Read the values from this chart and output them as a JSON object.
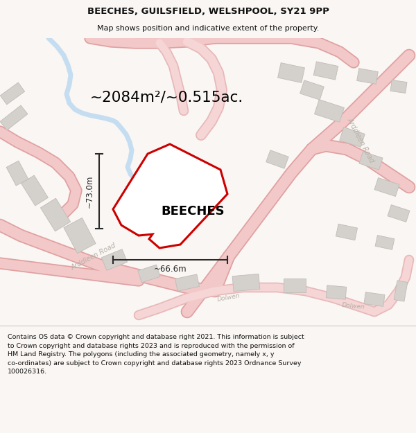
{
  "title_line1": "BEECHES, GUILSFIELD, WELSHPOOL, SY21 9PP",
  "title_line2": "Map shows position and indicative extent of the property.",
  "area_text": "~2084m²/~0.515ac.",
  "property_label": "BEECHES",
  "width_label": "~66.6m",
  "height_label": "~73.0m",
  "footer_lines": [
    "Contains OS data © Crown copyright and database right 2021. This information is subject to Crown copyright and database rights 2023 and is reproduced with the permission of",
    "HM Land Registry. The polygons (including the associated geometry, namely x, y",
    "co-ordinates) are subject to Crown copyright and database rights 2023 Ordnance Survey",
    "100026316."
  ],
  "map_bg": "#f5f0eb",
  "road_fill": "#f2c8c8",
  "road_edge": "#e0a0a0",
  "road_thin_fill": "#f5d5d5",
  "road_thin_edge": "#e8b8b8",
  "building_color": "#d4d0cb",
  "building_edge": "#c0bcb8",
  "water_color": "#c5ddf0",
  "property_fill": "#ffffff",
  "property_stroke": "#cc0000",
  "road_label_color": "#b8b0a8",
  "dim_color": "#2a2a2a",
  "title_color": "#111111",
  "footer_color": "#111111",
  "footer_bg": "#ffffff",
  "title_bg": "#f9f6f3"
}
